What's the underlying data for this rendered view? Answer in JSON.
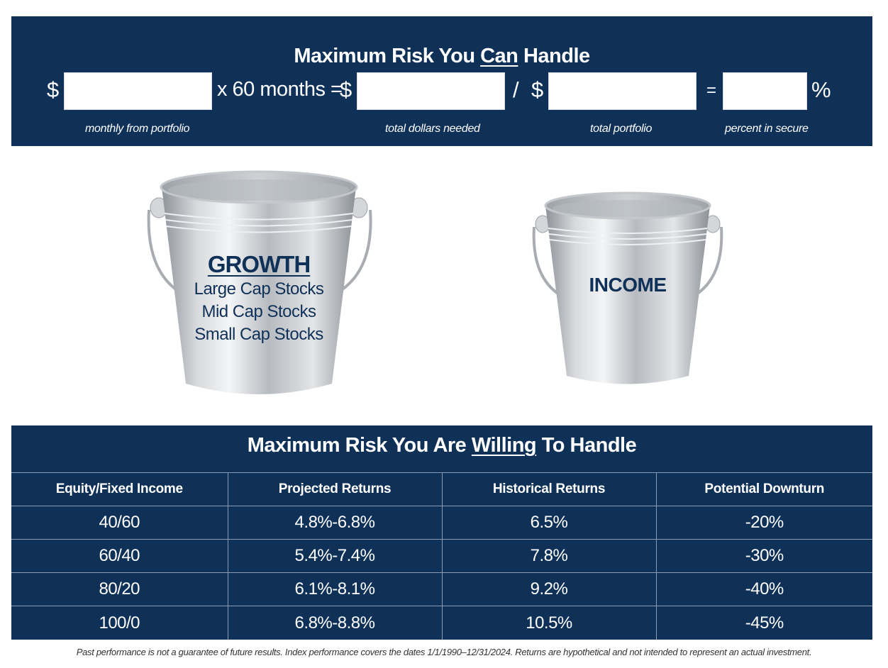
{
  "top": {
    "title_before": "Maximum Risk You ",
    "title_emphasis": "Can",
    "title_after": " Handle",
    "dollar_sign": "$",
    "multiply_text": "x 60 months  =",
    "divide_symbol": "/",
    "equals_symbol": "=",
    "percent_symbol": "%",
    "fields": {
      "monthly": {
        "value": "",
        "caption": "monthly from portfolio"
      },
      "total_needed": {
        "value": "",
        "caption": "total dollars needed"
      },
      "total_portfolio": {
        "value": "",
        "caption": "total portfolio"
      },
      "percent_secure": {
        "value": "",
        "caption": "percent in secure"
      }
    }
  },
  "buckets": {
    "growth": {
      "title": "GROWTH",
      "lines": [
        "Large Cap Stocks",
        "Mid Cap Stocks",
        "Small Cap Stocks"
      ]
    },
    "income": {
      "title": "INCOME"
    }
  },
  "bottom": {
    "title_before": "Maximum Risk You Are ",
    "title_emphasis": "Willing",
    "title_after": " To Handle",
    "headers": [
      "Equity/Fixed Income",
      "Projected Returns",
      "Historical Returns",
      "Potential Downturn"
    ],
    "rows": [
      [
        "40/60",
        "4.8%-6.8%",
        "6.5%",
        "-20%"
      ],
      [
        "60/40",
        "5.4%-7.4%",
        "7.8%",
        "-30%"
      ],
      [
        "80/20",
        "6.1%-8.1%",
        "9.2%",
        "-40%"
      ],
      [
        "100/0",
        "6.8%-8.8%",
        "10.5%",
        "-45%"
      ]
    ]
  },
  "footnote": "Past performance is not a guarantee of future results. Index performance covers the dates 1/1/1990–12/31/2024.  Returns are hypothetical and not intended to represent an actual investment.",
  "colors": {
    "navy": "#0f3158",
    "white": "#ffffff",
    "bucket_silver": "#c9ccd1"
  }
}
